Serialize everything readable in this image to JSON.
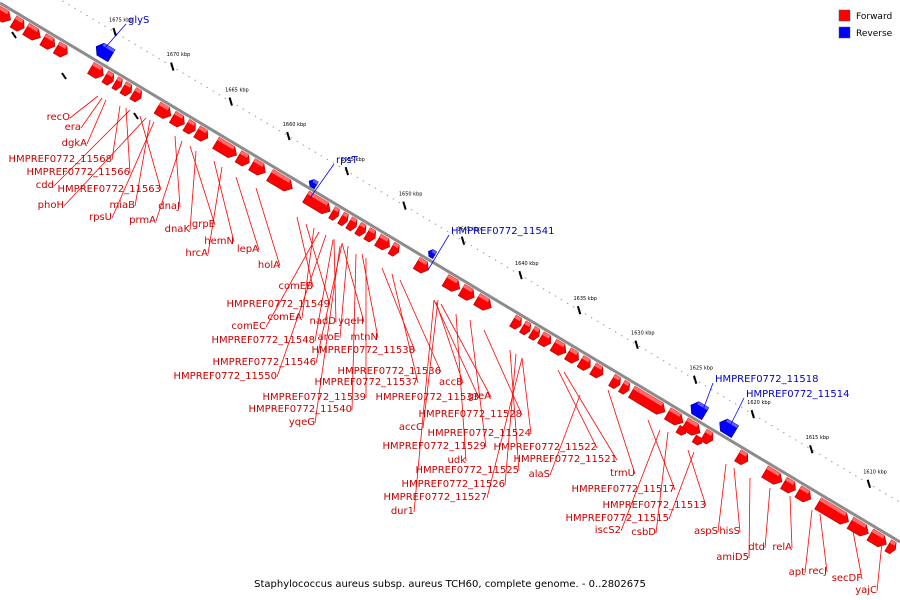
{
  "caption": "Staphylococcus aureus subsp. aureus TCH60, complete genome. - 0..2802675",
  "legend": [
    {
      "label": "Forward",
      "color": "#ff0000"
    },
    {
      "label": "Reverse",
      "color": "#0000ff"
    }
  ],
  "ticks": [
    "1675 kbp",
    "1670 kbp",
    "1665 kbp",
    "1660 kbp",
    "1655 kbp",
    "1650 kbp",
    "1645 kbp",
    "1640 kbp",
    "1635 kbp",
    "1630 kbp",
    "1625 kbp",
    "1620 kbp",
    "1615 kbp",
    "1610 kbp",
    "1605 kbp"
  ],
  "forward_labels": [
    "recO",
    "era",
    "dgkA",
    "HMPREF0772_11568",
    "HMPREF0772_11566",
    "cdd",
    "HMPREF0772_11563",
    "phoH",
    "miaB",
    "rpsU",
    "dnaJ",
    "prmA",
    "grpE",
    "dnaK",
    "hemN",
    "hrcA",
    "lepA",
    "holA",
    "comEB",
    "HMPREF0772_11549",
    "comEA",
    "nadD",
    "yqeH",
    "comEC",
    "aroE",
    "mtnN",
    "HMPREF0772_11548",
    "HMPREF0772_11538",
    "HMPREF0772_11546",
    "HMPREF0772_11536",
    "HMPREF0772_11550",
    "HMPREF0772_11537",
    "accB",
    "HMPREF0772_11539",
    "HMPREF0772_11533",
    "greA",
    "HMPREF0772_11540",
    "HMPREF0772_11528",
    "yqeG",
    "accC",
    "HMPREF0772_11524",
    "HMPREF0772_11529",
    "HMPREF0772_11522",
    "udk",
    "HMPREF0772_11521",
    "alaS",
    "HMPREF0772_11525",
    "trmU",
    "HMPREF0772_11526",
    "HMPREF0772_11517",
    "HMPREF0772_11527",
    "dur1",
    "HMPREF0772_11513",
    "HMPREF0772_11515",
    "iscS2",
    "csbD",
    "aspS",
    "hisS",
    "amiD5",
    "dtd",
    "relA",
    "apt",
    "recJ",
    "secDF",
    "yajC"
  ],
  "reverse_labels": [
    "glyS",
    "rpsT",
    "HMPREF0772_11541",
    "HMPREF0772_11518",
    "HMPREF0772_11514"
  ]
}
